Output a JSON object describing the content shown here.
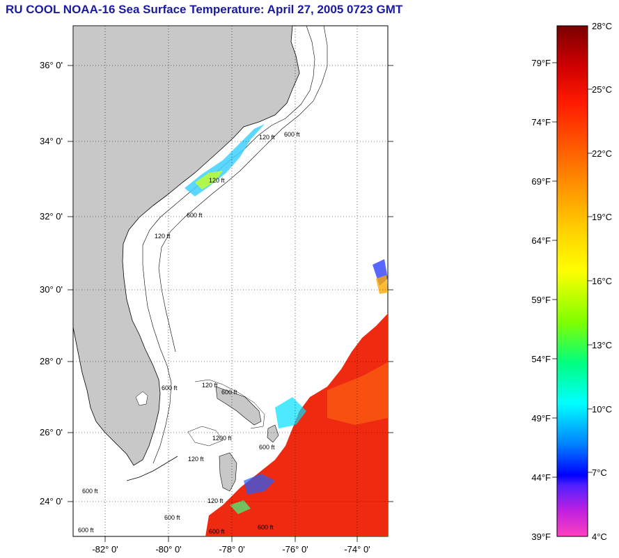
{
  "title": "RU COOL  NOAA-16  Sea Surface Temperature:  April 27, 2005 0723 GMT",
  "map": {
    "lat_labels": [
      "36° 0'",
      "34° 0'",
      "32° 0'",
      "30° 0'",
      "28° 0'",
      "26° 0'",
      "24° 0'"
    ],
    "lon_labels": [
      "-82° 0'",
      "-80° 0'",
      "-78° 0'",
      "-76° 0'",
      "-74° 0'"
    ],
    "depth_labels": [
      "120 ft",
      "600 ft",
      "120 ft",
      "600 ft",
      "120 ft",
      "600 ft",
      "120 ft",
      "600 ft",
      "1200 ft",
      "600 ft",
      "120 ft",
      "600 ft",
      "120 ft",
      "600 ft",
      "600 ft",
      "600 ft",
      "600 ft"
    ],
    "colors": {
      "land": "#c8c8c8",
      "ocean": "#ffffff",
      "warm": "#ee2a10",
      "title": "#1a1aa0"
    }
  },
  "colorbar": {
    "fahrenheit_labels": [
      "79°F",
      "74°F",
      "69°F",
      "64°F",
      "59°F",
      "54°F",
      "49°F",
      "44°F",
      "39°F"
    ],
    "celsius_labels": [
      "28°C",
      "25°C",
      "22°C",
      "19°C",
      "16°C",
      "13°C",
      "10°C",
      "7°C",
      "4°C"
    ],
    "celsius_values": [
      28,
      25,
      22,
      19,
      16,
      13,
      10,
      7,
      4
    ],
    "fahrenheit_values": [
      79,
      74,
      69,
      64,
      59,
      54,
      49,
      44,
      39
    ]
  }
}
